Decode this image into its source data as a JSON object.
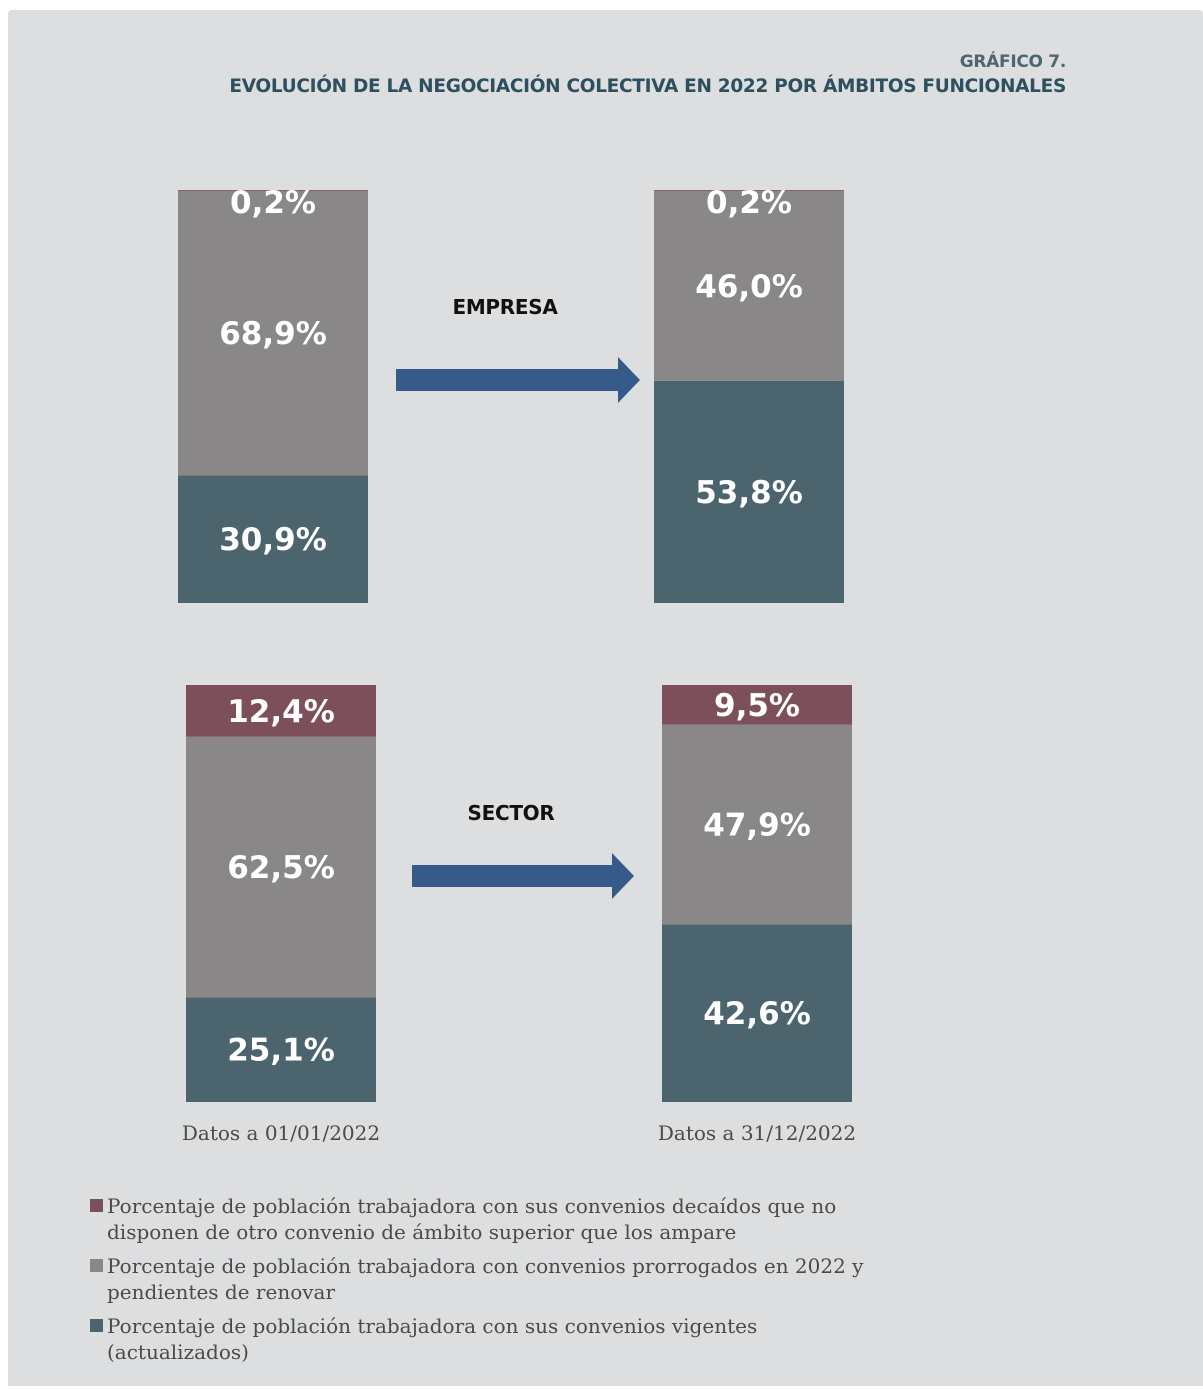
{
  "title": {
    "number": "GRÁFICO 7.",
    "main": "EVOLUCIÓN DE LA NEGOCIACIÓN COLECTIVA EN 2022 POR ÁMBITOS FUNCIONALES"
  },
  "colors": {
    "decaidos": "#7c4f5a",
    "prorrogados": "#898788",
    "vigentes": "#4c646e",
    "arrow": "#365a89"
  },
  "chart_data": {
    "type": "bar",
    "stacked": true,
    "categories": [
      "Datos a 01/01/2022",
      "Datos a 31/12/2022"
    ],
    "groups": [
      {
        "name": "EMPRESA",
        "stacks": [
          {
            "category": "Datos a 01/01/2022",
            "vigentes": 30.9,
            "prorrogados": 68.9,
            "decaidos": 0.2,
            "labels": {
              "vigentes": "30,9%",
              "prorrogados": "68,9%",
              "decaidos": "0,2%"
            }
          },
          {
            "category": "Datos a 31/12/2022",
            "vigentes": 53.8,
            "prorrogados": 46.0,
            "decaidos": 0.2,
            "labels": {
              "vigentes": "53,8%",
              "prorrogados": "46,0%",
              "decaidos": "0,2%"
            }
          }
        ]
      },
      {
        "name": "SECTOR",
        "stacks": [
          {
            "category": "Datos a 01/01/2022",
            "vigentes": 25.1,
            "prorrogados": 62.5,
            "decaidos": 12.4,
            "labels": {
              "vigentes": "25,1%",
              "prorrogados": "62,5%",
              "decaidos": "12,4%"
            }
          },
          {
            "category": "Datos a 31/12/2022",
            "vigentes": 42.6,
            "prorrogados": 47.9,
            "decaidos": 9.5,
            "labels": {
              "vigentes": "42,6%",
              "prorrogados": "47,9%",
              "decaidos": "9,5%"
            }
          }
        ]
      }
    ],
    "legend": [
      {
        "key": "decaidos",
        "label": "Porcentaje de población trabajadora con sus convenios decaídos que no\ndisponen de otro convenio de ámbito superior que los ampare"
      },
      {
        "key": "prorrogados",
        "label": "Porcentaje de población trabajadora con convenios prorrogados en 2022 y\npendientes de renovar"
      },
      {
        "key": "vigentes",
        "label": "Porcentaje de población trabajadora con sus convenios vigentes\n(actualizados)"
      }
    ],
    "legend_position": "bottom"
  }
}
